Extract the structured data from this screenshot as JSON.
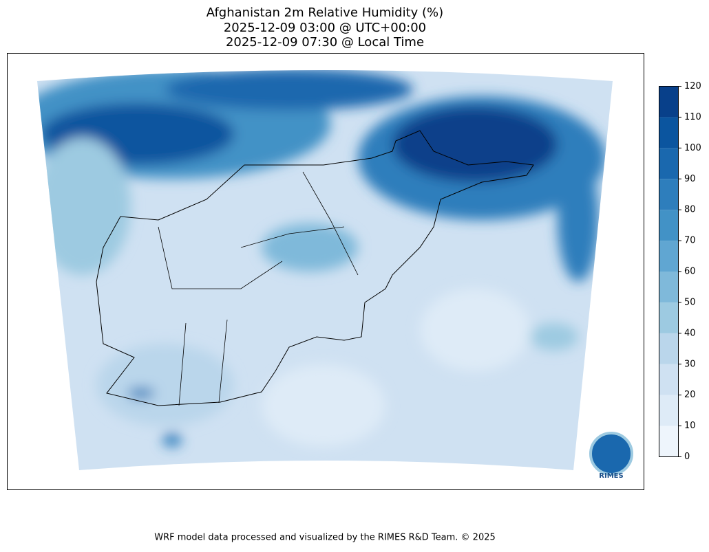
{
  "title": [
    "Afghanistan 2m Relative Humidity (%)",
    "2025-12-09 03:00 @ UTC+00:00",
    "2025-12-09 07:30 @ Local Time"
  ],
  "colorbar": {
    "levels": [
      0,
      10,
      20,
      30,
      40,
      50,
      60,
      70,
      80,
      90,
      100,
      110,
      120
    ],
    "colors": [
      "#eef5fc",
      "#deebf7",
      "#cfe1f2",
      "#bad6eb",
      "#9dcae1",
      "#7fb9da",
      "#60a6d2",
      "#4292c6",
      "#2e7ebc",
      "#1a68ae",
      "#0b559f",
      "#08408a"
    ]
  },
  "logo": "RIMES",
  "footer": "WRF model data processed and visualized by the RIMES R&D Team. © 2025"
}
